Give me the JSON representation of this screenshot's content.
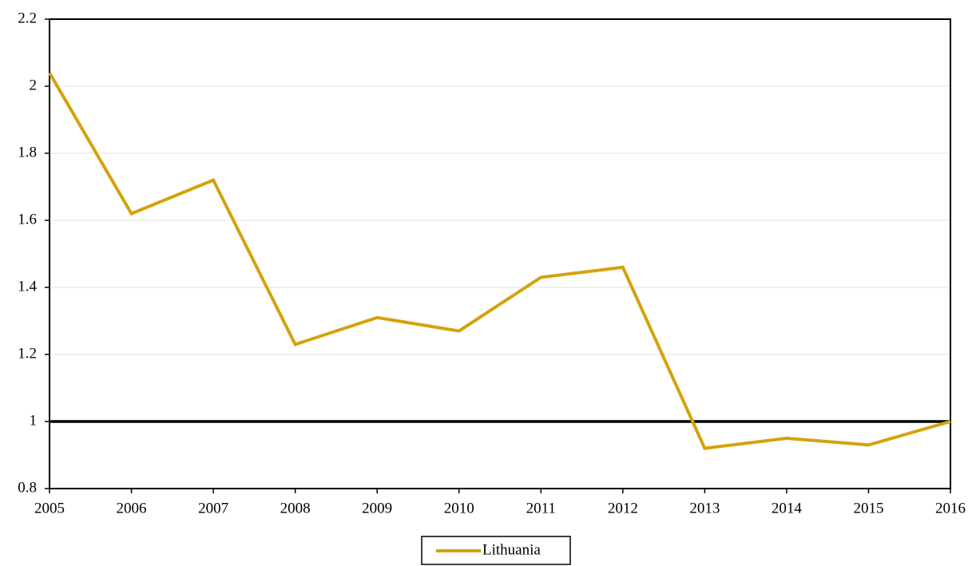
{
  "chart_data": {
    "type": "line",
    "x": [
      2005,
      2006,
      2007,
      2008,
      2009,
      2010,
      2011,
      2012,
      2013,
      2014,
      2015,
      2016
    ],
    "series": [
      {
        "name": "Lithuania",
        "color": "#d4a20c",
        "values": [
          2.04,
          1.62,
          1.72,
          1.23,
          1.31,
          1.27,
          1.43,
          1.46,
          0.92,
          0.95,
          0.93,
          1.0
        ]
      }
    ],
    "xlim": [
      2005,
      2016
    ],
    "xticks": [
      2005,
      2006,
      2007,
      2008,
      2009,
      2010,
      2011,
      2012,
      2013,
      2014,
      2015,
      2016
    ],
    "ylim": [
      0.8,
      2.2
    ],
    "yticks": [
      0.8,
      1,
      1.2,
      1.4,
      1.6,
      1.8,
      2,
      2.2
    ],
    "reference_line": 1,
    "grid": true,
    "legend": "bottom"
  }
}
